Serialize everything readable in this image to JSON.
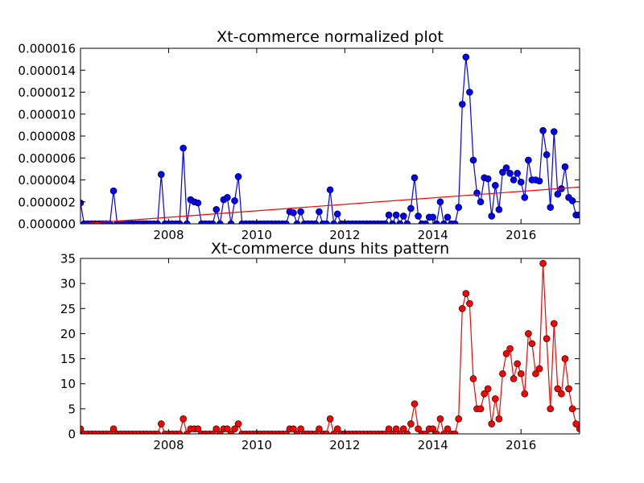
{
  "chart_data": [
    {
      "type": "line",
      "title": "Xt-commerce normalized plot",
      "xlabel": "",
      "ylabel": "",
      "xlim": [
        2006.0,
        2017.33
      ],
      "ylim": [
        0,
        1.6e-05
      ],
      "x_ticks": [
        2008,
        2010,
        2012,
        2014,
        2016
      ],
      "x_tick_labels": [
        "2008",
        "2010",
        "2012",
        "2014",
        "2016"
      ],
      "y_ticks": [
        0,
        2e-06,
        4e-06,
        6e-06,
        8e-06,
        1e-05,
        1.2e-05,
        1.4e-05,
        1.6e-05
      ],
      "y_tick_labels": [
        "0.000000",
        "0.000002",
        "0.000004",
        "0.000006",
        "0.000008",
        "0.000010",
        "0.000012",
        "0.000014",
        "0.000016"
      ],
      "grid": false,
      "line_color": "#0000ff",
      "marker_color": "#0000ff",
      "trend_color": "#ff0000",
      "trend_line": {
        "x": [
          2006.0,
          2017.33
        ],
        "y": [
          0.0,
          3.35e-06
        ]
      },
      "series": [
        {
          "x": [
            2006.0,
            2006.083,
            2006.167,
            2006.25,
            2006.333,
            2006.417,
            2006.5,
            2006.583,
            2006.667,
            2006.75,
            2006.833,
            2006.917,
            2007.0,
            2007.083,
            2007.167,
            2007.25,
            2007.333,
            2007.417,
            2007.5,
            2007.583,
            2007.667,
            2007.75,
            2007.833,
            2007.917,
            2008.0,
            2008.083,
            2008.167,
            2008.25,
            2008.333,
            2008.417,
            2008.5,
            2008.583,
            2008.667,
            2008.75,
            2008.833,
            2008.917,
            2009.0,
            2009.083,
            2009.167,
            2009.25,
            2009.333,
            2009.417,
            2009.5,
            2009.583,
            2009.667,
            2009.75,
            2009.833,
            2009.917,
            2010.0,
            2010.083,
            2010.167,
            2010.25,
            2010.333,
            2010.417,
            2010.5,
            2010.583,
            2010.667,
            2010.75,
            2010.833,
            2010.917,
            2011.0,
            2011.083,
            2011.167,
            2011.25,
            2011.333,
            2011.417,
            2011.5,
            2011.583,
            2011.667,
            2011.75,
            2011.833,
            2011.917,
            2012.0,
            2012.083,
            2012.167,
            2012.25,
            2012.333,
            2012.417,
            2012.5,
            2012.583,
            2012.667,
            2012.75,
            2012.833,
            2012.917,
            2013.0,
            2013.083,
            2013.167,
            2013.25,
            2013.333,
            2013.417,
            2013.5,
            2013.583,
            2013.667,
            2013.75,
            2013.833,
            2013.917,
            2014.0,
            2014.083,
            2014.167,
            2014.25,
            2014.333,
            2014.417,
            2014.5,
            2014.583,
            2014.667,
            2014.75,
            2014.833,
            2014.917,
            2015.0,
            2015.083,
            2015.167,
            2015.25,
            2015.333,
            2015.417,
            2015.5,
            2015.583,
            2015.667,
            2015.75,
            2015.833,
            2015.917,
            2016.0,
            2016.083,
            2016.167,
            2016.25,
            2016.333,
            2016.417,
            2016.5,
            2016.583,
            2016.667,
            2016.75,
            2016.833,
            2016.917,
            2017.0,
            2017.083,
            2017.167,
            2017.25,
            2017.333
          ],
          "y": [
            1.9e-06,
            0.0,
            0.0,
            0.0,
            0.0,
            0.0,
            0.0,
            0.0,
            0.0,
            3e-06,
            0.0,
            0.0,
            0.0,
            0.0,
            0.0,
            0.0,
            0.0,
            0.0,
            0.0,
            0.0,
            0.0,
            0.0,
            4.5e-06,
            0.0,
            0.0,
            0.0,
            0.0,
            0.0,
            6.9e-06,
            0.0,
            2.2e-06,
            2e-06,
            1.9e-06,
            0.0,
            0.0,
            0.0,
            0.0,
            1.3e-06,
            0.0,
            2.2e-06,
            2.4e-06,
            0.0,
            2.1e-06,
            4.3e-06,
            0.0,
            0.0,
            0.0,
            0.0,
            0.0,
            0.0,
            0.0,
            0.0,
            0.0,
            0.0,
            0.0,
            0.0,
            0.0,
            1.1e-06,
            1e-06,
            0.0,
            1.1e-06,
            0.0,
            0.0,
            0.0,
            0.0,
            1.1e-06,
            0.0,
            0.0,
            3.1e-06,
            0.0,
            9e-07,
            0.0,
            0.0,
            0.0,
            0.0,
            0.0,
            0.0,
            0.0,
            0.0,
            0.0,
            0.0,
            0.0,
            0.0,
            0.0,
            8e-07,
            0.0,
            8e-07,
            0.0,
            7e-07,
            0.0,
            1.4e-06,
            4.2e-06,
            7e-07,
            0.0,
            0.0,
            6e-07,
            6e-07,
            0.0,
            2e-06,
            0.0,
            6e-07,
            0.0,
            0.0,
            1.5e-06,
            1.09e-05,
            1.52e-05,
            1.2e-05,
            5.8e-06,
            2.8e-06,
            2e-06,
            4.2e-06,
            4.1e-06,
            7e-07,
            3.5e-06,
            1.3e-06,
            4.7e-06,
            5.1e-06,
            4.6e-06,
            4e-06,
            4.6e-06,
            3.8e-06,
            2.4e-06,
            5.8e-06,
            4e-06,
            4e-06,
            3.9e-06,
            8.5e-06,
            6.3e-06,
            1.5e-06,
            8.4e-06,
            2.7e-06,
            3.2e-06,
            5.2e-06,
            2.4e-06,
            2.1e-06,
            8e-07,
            8e-07
          ]
        }
      ]
    },
    {
      "type": "line",
      "title": "Xt-commerce duns hits pattern",
      "xlabel": "",
      "ylabel": "",
      "xlim": [
        2006.0,
        2017.33
      ],
      "ylim": [
        0,
        35
      ],
      "x_ticks": [
        2008,
        2010,
        2012,
        2014,
        2016
      ],
      "x_tick_labels": [
        "2008",
        "2010",
        "2012",
        "2014",
        "2016"
      ],
      "y_ticks": [
        0,
        5,
        10,
        15,
        20,
        25,
        30,
        35
      ],
      "y_tick_labels": [
        "0",
        "5",
        "10",
        "15",
        "20",
        "25",
        "30",
        "35"
      ],
      "grid": false,
      "line_color": "#ff0000",
      "marker_color": "#ff0000",
      "series": [
        {
          "x": [
            2006.0,
            2006.083,
            2006.167,
            2006.25,
            2006.333,
            2006.417,
            2006.5,
            2006.583,
            2006.667,
            2006.75,
            2006.833,
            2006.917,
            2007.0,
            2007.083,
            2007.167,
            2007.25,
            2007.333,
            2007.417,
            2007.5,
            2007.583,
            2007.667,
            2007.75,
            2007.833,
            2007.917,
            2008.0,
            2008.083,
            2008.167,
            2008.25,
            2008.333,
            2008.417,
            2008.5,
            2008.583,
            2008.667,
            2008.75,
            2008.833,
            2008.917,
            2009.0,
            2009.083,
            2009.167,
            2009.25,
            2009.333,
            2009.417,
            2009.5,
            2009.583,
            2009.667,
            2009.75,
            2009.833,
            2009.917,
            2010.0,
            2010.083,
            2010.167,
            2010.25,
            2010.333,
            2010.417,
            2010.5,
            2010.583,
            2010.667,
            2010.75,
            2010.833,
            2010.917,
            2011.0,
            2011.083,
            2011.167,
            2011.25,
            2011.333,
            2011.417,
            2011.5,
            2011.583,
            2011.667,
            2011.75,
            2011.833,
            2011.917,
            2012.0,
            2012.083,
            2012.167,
            2012.25,
            2012.333,
            2012.417,
            2012.5,
            2012.583,
            2012.667,
            2012.75,
            2012.833,
            2012.917,
            2013.0,
            2013.083,
            2013.167,
            2013.25,
            2013.333,
            2013.417,
            2013.5,
            2013.583,
            2013.667,
            2013.75,
            2013.833,
            2013.917,
            2014.0,
            2014.083,
            2014.167,
            2014.25,
            2014.333,
            2014.417,
            2014.5,
            2014.583,
            2014.667,
            2014.75,
            2014.833,
            2014.917,
            2015.0,
            2015.083,
            2015.167,
            2015.25,
            2015.333,
            2015.417,
            2015.5,
            2015.583,
            2015.667,
            2015.75,
            2015.833,
            2015.917,
            2016.0,
            2016.083,
            2016.167,
            2016.25,
            2016.333,
            2016.417,
            2016.5,
            2016.583,
            2016.667,
            2016.75,
            2016.833,
            2016.917,
            2017.0,
            2017.083,
            2017.167,
            2017.25,
            2017.333
          ],
          "y": [
            1,
            0,
            0,
            0,
            0,
            0,
            0,
            0,
            0,
            1,
            0,
            0,
            0,
            0,
            0,
            0,
            0,
            0,
            0,
            0,
            0,
            0,
            2,
            0,
            0,
            0,
            0,
            0,
            3,
            0,
            1,
            1,
            1,
            0,
            0,
            0,
            0,
            1,
            0,
            1,
            1,
            0,
            1,
            2,
            0,
            0,
            0,
            0,
            0,
            0,
            0,
            0,
            0,
            0,
            0,
            0,
            0,
            1,
            1,
            0,
            1,
            0,
            0,
            0,
            0,
            1,
            0,
            0,
            3,
            0,
            1,
            0,
            0,
            0,
            0,
            0,
            0,
            0,
            0,
            0,
            0,
            0,
            0,
            0,
            1,
            0,
            1,
            0,
            1,
            0,
            2,
            6,
            1,
            0,
            0,
            1,
            1,
            0,
            3,
            0,
            1,
            0,
            0,
            3,
            25,
            28,
            26,
            11,
            5,
            5,
            8,
            9,
            2,
            7,
            3,
            12,
            16,
            17,
            11,
            14,
            12,
            8,
            20,
            18,
            12,
            13,
            34,
            19,
            5,
            22,
            9,
            8,
            15,
            9,
            5,
            2,
            1
          ]
        }
      ]
    }
  ]
}
